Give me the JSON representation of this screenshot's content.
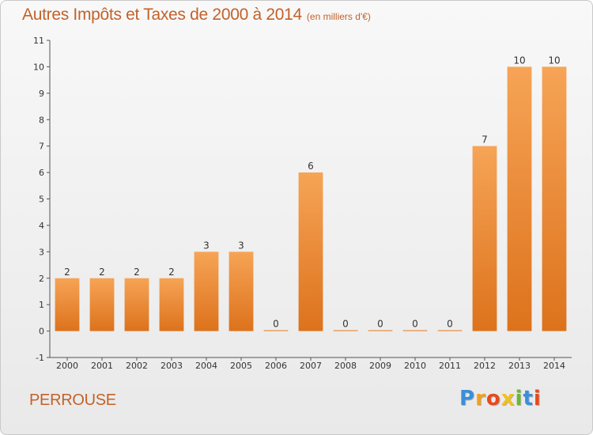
{
  "chart_data": {
    "type": "bar",
    "title": "Autres Impôts et Taxes de 2000 à 2014",
    "subtitle": "(en milliers d'€)",
    "xlabel": "",
    "ylabel": "",
    "categories": [
      "2000",
      "2001",
      "2002",
      "2003",
      "2004",
      "2005",
      "2006",
      "2007",
      "2008",
      "2009",
      "2010",
      "2011",
      "2012",
      "2013",
      "2014"
    ],
    "values": [
      2,
      2,
      2,
      2,
      3,
      3,
      0,
      6,
      0,
      0,
      0,
      0,
      7,
      10,
      10
    ],
    "value_labels": [
      "2",
      "2",
      "2",
      "2",
      "3",
      "3",
      "0",
      "6",
      "0",
      "0",
      "0",
      "0",
      "7",
      "10",
      "10"
    ],
    "yticks": [
      "-1",
      "0",
      "1",
      "2",
      "3",
      "4",
      "5",
      "6",
      "7",
      "8",
      "9",
      "10",
      "11"
    ],
    "ylim": [
      -1,
      11
    ],
    "grid": false,
    "bar_color": "#f08a2c"
  },
  "footer": {
    "commune": "PERROUSE",
    "logo_letters": [
      {
        "ch": "P",
        "color": "#3a8fd8"
      },
      {
        "ch": "r",
        "color": "#f0a020"
      },
      {
        "ch": "o",
        "color": "#e84a1a"
      },
      {
        "ch": "x",
        "color": "#f0c020"
      },
      {
        "ch": "i",
        "color": "#6ab830"
      },
      {
        "ch": "t",
        "color": "#3a8fd8"
      },
      {
        "ch": "i",
        "color": "#e84a1a"
      }
    ]
  }
}
